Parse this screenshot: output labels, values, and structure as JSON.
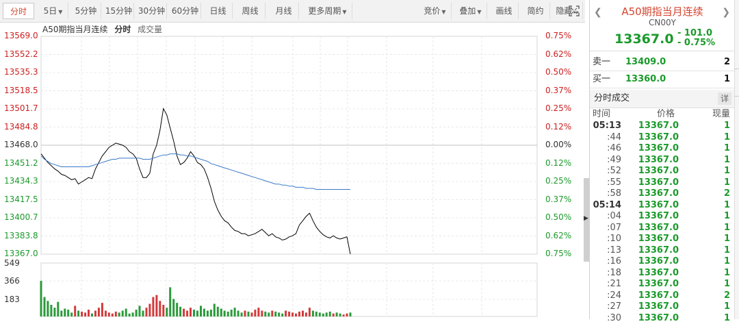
{
  "toolbar": {
    "periods": [
      {
        "label": "分时",
        "active": true
      },
      {
        "label": "5日",
        "caret": true
      },
      {
        "label": "5分钟"
      },
      {
        "label": "15分钟"
      },
      {
        "label": "30分钟"
      },
      {
        "label": "60分钟"
      },
      {
        "label": "日线"
      },
      {
        "label": "周线"
      },
      {
        "label": "月线"
      },
      {
        "label": "更多周期",
        "caret": true
      }
    ],
    "right_buttons": [
      {
        "label": "竞价",
        "caret": true
      },
      {
        "label": "叠加",
        "caret": true
      },
      {
        "label": "画线"
      },
      {
        "label": "简约"
      },
      {
        "label": "隐藏",
        "caret": true
      }
    ],
    "fullscreen_icon": "expand-icon"
  },
  "chart_title": {
    "name": "A50期指当月连续",
    "mode": "分时",
    "extra": "成交量"
  },
  "price_axis": {
    "left": [
      "13569.0",
      "13552.2",
      "13535.3",
      "13518.5",
      "13501.7",
      "13484.8",
      "13468.0",
      "13451.2",
      "13434.3",
      "13417.5",
      "13400.7",
      "13383.8",
      "13367.0"
    ],
    "right": [
      "0.75%",
      "0.62%",
      "0.50%",
      "0.37%",
      "0.25%",
      "0.12%",
      "0.00%",
      "0.12%",
      "0.25%",
      "0.37%",
      "0.50%",
      "0.62%",
      "0.75%"
    ]
  },
  "volume_axis": [
    "549",
    "366",
    "183"
  ],
  "chart_data": {
    "type": "line",
    "ylim": [
      13367.0,
      13569.0
    ],
    "prev_close": 13468.0,
    "series": [
      {
        "name": "price",
        "color": "#000000",
        "values": [
          13460,
          13456,
          13452,
          13449,
          13446,
          13444,
          13441,
          13440,
          13438,
          13436,
          13437,
          13432,
          13434,
          13436,
          13438,
          13437,
          13446,
          13452,
          13458,
          13462,
          13466,
          13468,
          13470,
          13469,
          13468,
          13466,
          13462,
          13460,
          13456,
          13446,
          13438,
          13438,
          13442,
          13460,
          13468,
          13482,
          13502,
          13496,
          13484,
          13472,
          13458,
          13450,
          13452,
          13456,
          13462,
          13458,
          13452,
          13450,
          13446,
          13438,
          13428,
          13416,
          13408,
          13402,
          13398,
          13396,
          13392,
          13389,
          13388,
          13386,
          13386,
          13384,
          13385,
          13386,
          13388,
          13390,
          13387,
          13384,
          13386,
          13383,
          13382,
          13380,
          13381,
          13383,
          13384,
          13386,
          13394,
          13398,
          13402,
          13405,
          13398,
          13392,
          13388,
          13385,
          13383,
          13382,
          13384,
          13382,
          13381,
          13382,
          13383,
          13367
        ]
      },
      {
        "name": "avg",
        "color": "#3a78c9",
        "values": [
          13458,
          13455,
          13453,
          13451,
          13450,
          13449,
          13448,
          13448,
          13448,
          13448,
          13448,
          13448,
          13448,
          13448,
          13448,
          13449,
          13450,
          13451,
          13452,
          13453,
          13454,
          13455,
          13455,
          13456,
          13456,
          13456,
          13456,
          13456,
          13456,
          13456,
          13455,
          13455,
          13455,
          13456,
          13457,
          13458,
          13459,
          13459,
          13460,
          13460,
          13460,
          13459,
          13459,
          13458,
          13458,
          13457,
          13456,
          13455,
          13454,
          13453,
          13451,
          13450,
          13449,
          13448,
          13447,
          13446,
          13445,
          13444,
          13443,
          13442,
          13441,
          13440,
          13439,
          13438,
          13437,
          13436,
          13435,
          13434,
          13433,
          13432,
          13432,
          13431,
          13431,
          13430,
          13430,
          13429,
          13429,
          13429,
          13428,
          13428,
          13428,
          13427,
          13427,
          13427,
          13427,
          13427,
          13427,
          13427,
          13427,
          13427,
          13427,
          13427
        ]
      }
    ],
    "volume_series": {
      "ylim": [
        0,
        549
      ],
      "values": [
        366,
        200,
        160,
        120,
        90,
        150,
        60,
        80,
        70,
        40,
        110,
        60,
        50,
        40,
        70,
        30,
        60,
        90,
        140,
        60,
        40,
        30,
        50,
        40,
        60,
        80,
        30,
        40,
        70,
        110,
        60,
        90,
        130,
        200,
        220,
        160,
        120,
        90,
        300,
        180,
        140,
        100,
        80,
        60,
        90,
        70,
        60,
        110,
        80,
        60,
        70,
        130,
        100,
        80,
        60,
        50,
        70,
        90,
        60,
        40,
        60,
        50,
        40,
        70,
        90,
        60,
        50,
        40,
        60,
        50,
        40,
        30,
        60,
        50,
        40,
        30,
        50,
        60,
        40,
        90,
        60,
        50,
        40,
        30,
        40,
        50,
        30,
        40,
        30,
        20,
        30,
        40
      ]
    }
  },
  "right_panel": {
    "name": "A50期指当月连续",
    "code": "CN00Y",
    "price": "13367.0",
    "change": "- 101.0",
    "change_pct": "- 0.75%",
    "sell1": {
      "label": "卖一",
      "price": "13409.0",
      "vol": "2"
    },
    "buy1": {
      "label": "买一",
      "price": "13360.0",
      "vol": "1"
    },
    "trades_title": "分时成交",
    "detail_btn": "详",
    "headers": {
      "time": "时间",
      "price": "价格",
      "vol": "现量"
    },
    "trades": [
      {
        "time": "05:13",
        "price": "13367.0",
        "vol": "1"
      },
      {
        "time": ":44",
        "price": "13367.0",
        "vol": "1"
      },
      {
        "time": ":46",
        "price": "13367.0",
        "vol": "1"
      },
      {
        "time": ":49",
        "price": "13367.0",
        "vol": "1"
      },
      {
        "time": ":52",
        "price": "13367.0",
        "vol": "1"
      },
      {
        "time": ":55",
        "price": "13367.0",
        "vol": "1"
      },
      {
        "time": ":58",
        "price": "13367.0",
        "vol": "2"
      },
      {
        "time": "05:14",
        "price": "13367.0",
        "vol": "1"
      },
      {
        "time": ":04",
        "price": "13367.0",
        "vol": "1"
      },
      {
        "time": ":07",
        "price": "13367.0",
        "vol": "1"
      },
      {
        "time": ":10",
        "price": "13367.0",
        "vol": "1"
      },
      {
        "time": ":13",
        "price": "13367.0",
        "vol": "1"
      },
      {
        "time": ":16",
        "price": "13367.0",
        "vol": "1"
      },
      {
        "time": ":18",
        "price": "13367.0",
        "vol": "1"
      },
      {
        "time": ":21",
        "price": "13367.0",
        "vol": "1"
      },
      {
        "time": ":24",
        "price": "13367.0",
        "vol": "2"
      },
      {
        "time": ":27",
        "price": "13367.0",
        "vol": "1"
      },
      {
        "time": ":30",
        "price": "13367.0",
        "vol": "1"
      }
    ]
  }
}
